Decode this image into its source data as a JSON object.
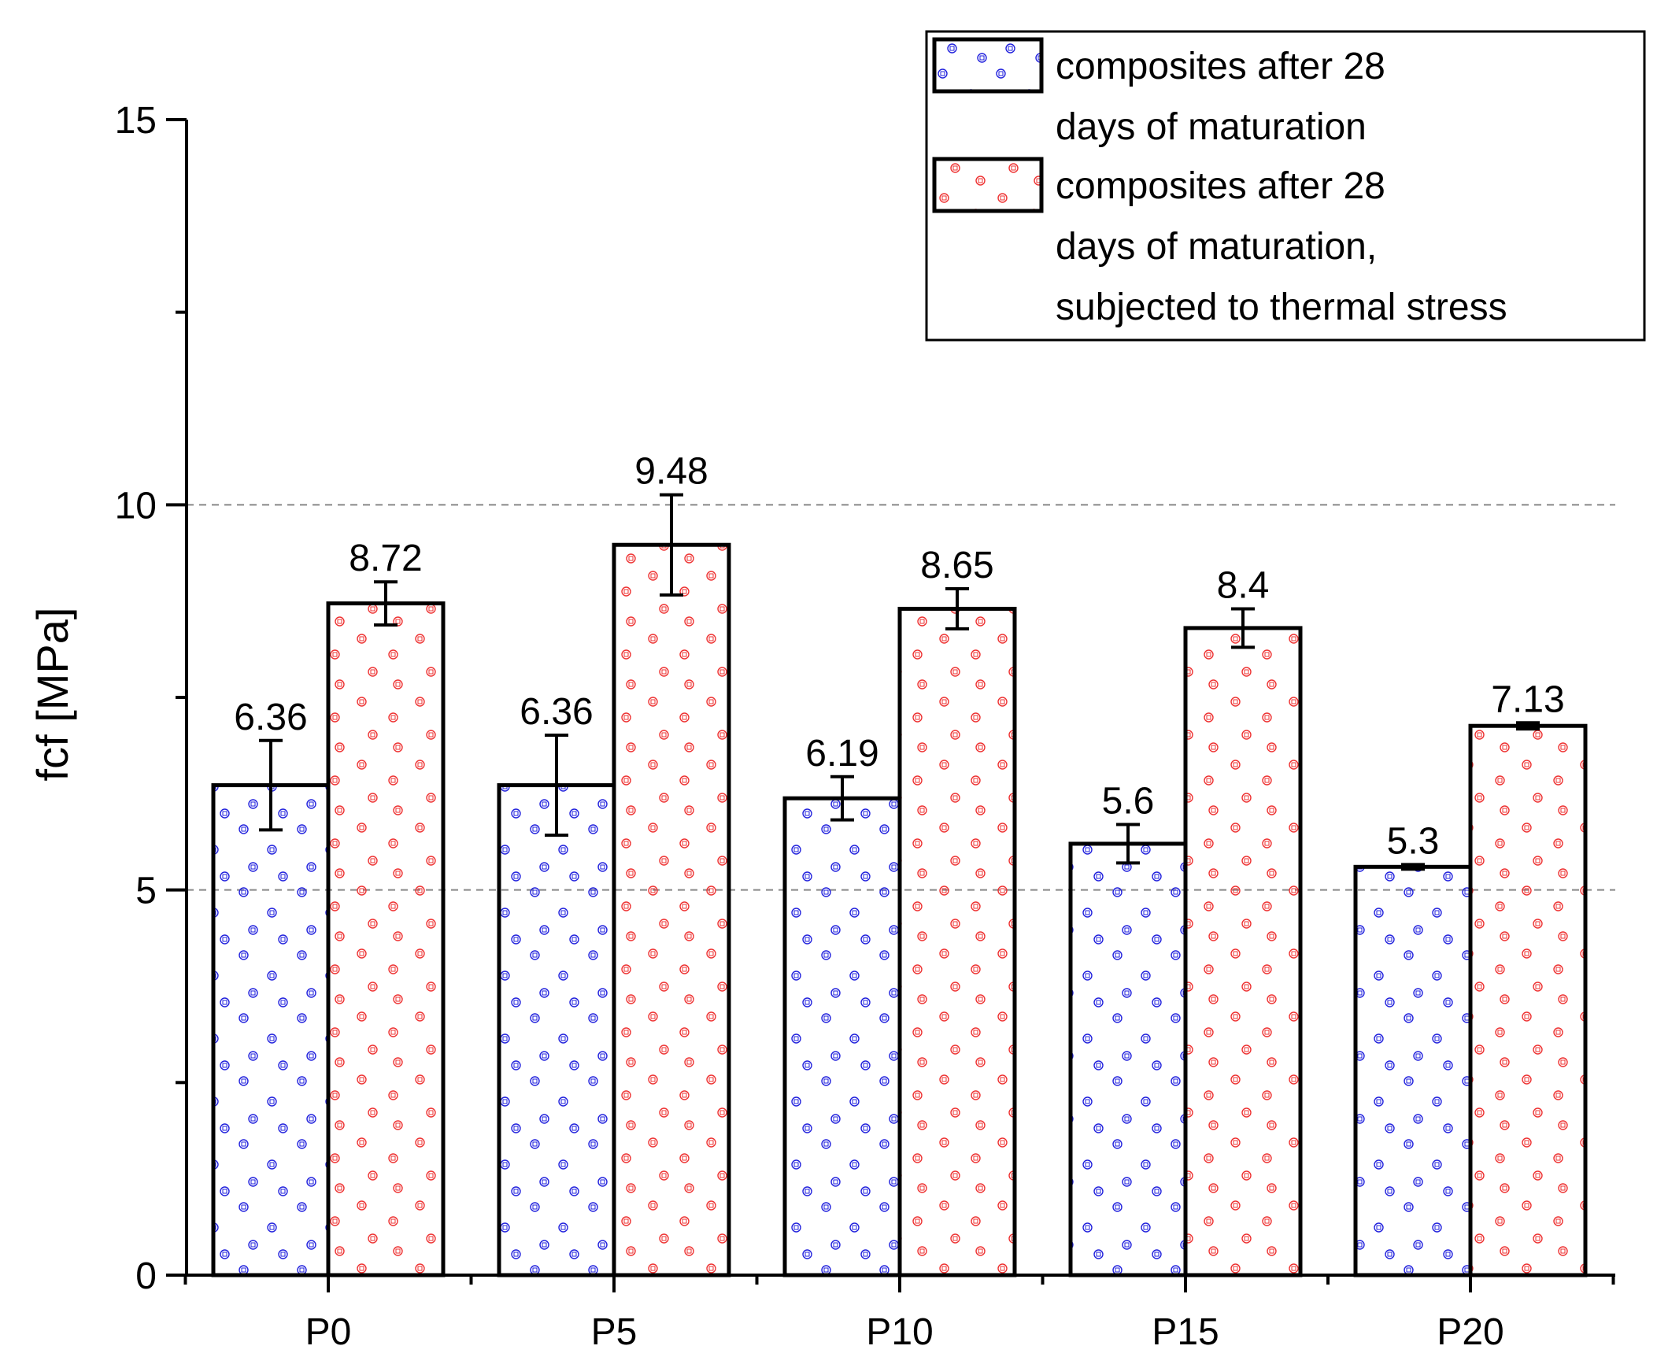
{
  "chart_data": {
    "type": "bar",
    "title": "",
    "xlabel": "",
    "ylabel": "fcf [MPa]",
    "ylim": [
      0,
      15
    ],
    "yticks": [
      "0",
      "5",
      "10",
      "15"
    ],
    "grid_y_values": [
      5,
      10
    ],
    "categories": [
      "P0",
      "P5",
      "P10",
      "P15",
      "P20"
    ],
    "series": [
      {
        "name": "composites after 28 days of maturation",
        "legend_lines": [
          "composites after 28",
          "days of maturation"
        ],
        "color": "#2222dd",
        "values": [
          6.36,
          6.36,
          6.19,
          5.6,
          5.3
        ],
        "labels": [
          "6.36",
          "6.36",
          "6.19",
          "5.6",
          "5.3"
        ],
        "errors": [
          0.58,
          0.65,
          0.28,
          0.25,
          0.03
        ]
      },
      {
        "name": "composites after 28 days of maturation, subjected to thermal stress",
        "legend_lines": [
          "composites after 28",
          "days of maturation,",
          "subjected to thermal stress"
        ],
        "color": "#ee3333",
        "values": [
          8.72,
          9.48,
          8.65,
          8.4,
          7.13
        ],
        "labels": [
          "8.72",
          "9.48",
          "8.65",
          "8.4",
          "7.13"
        ],
        "errors": [
          0.28,
          0.65,
          0.26,
          0.25,
          0.04
        ]
      }
    ],
    "legend_position": "top-right"
  }
}
